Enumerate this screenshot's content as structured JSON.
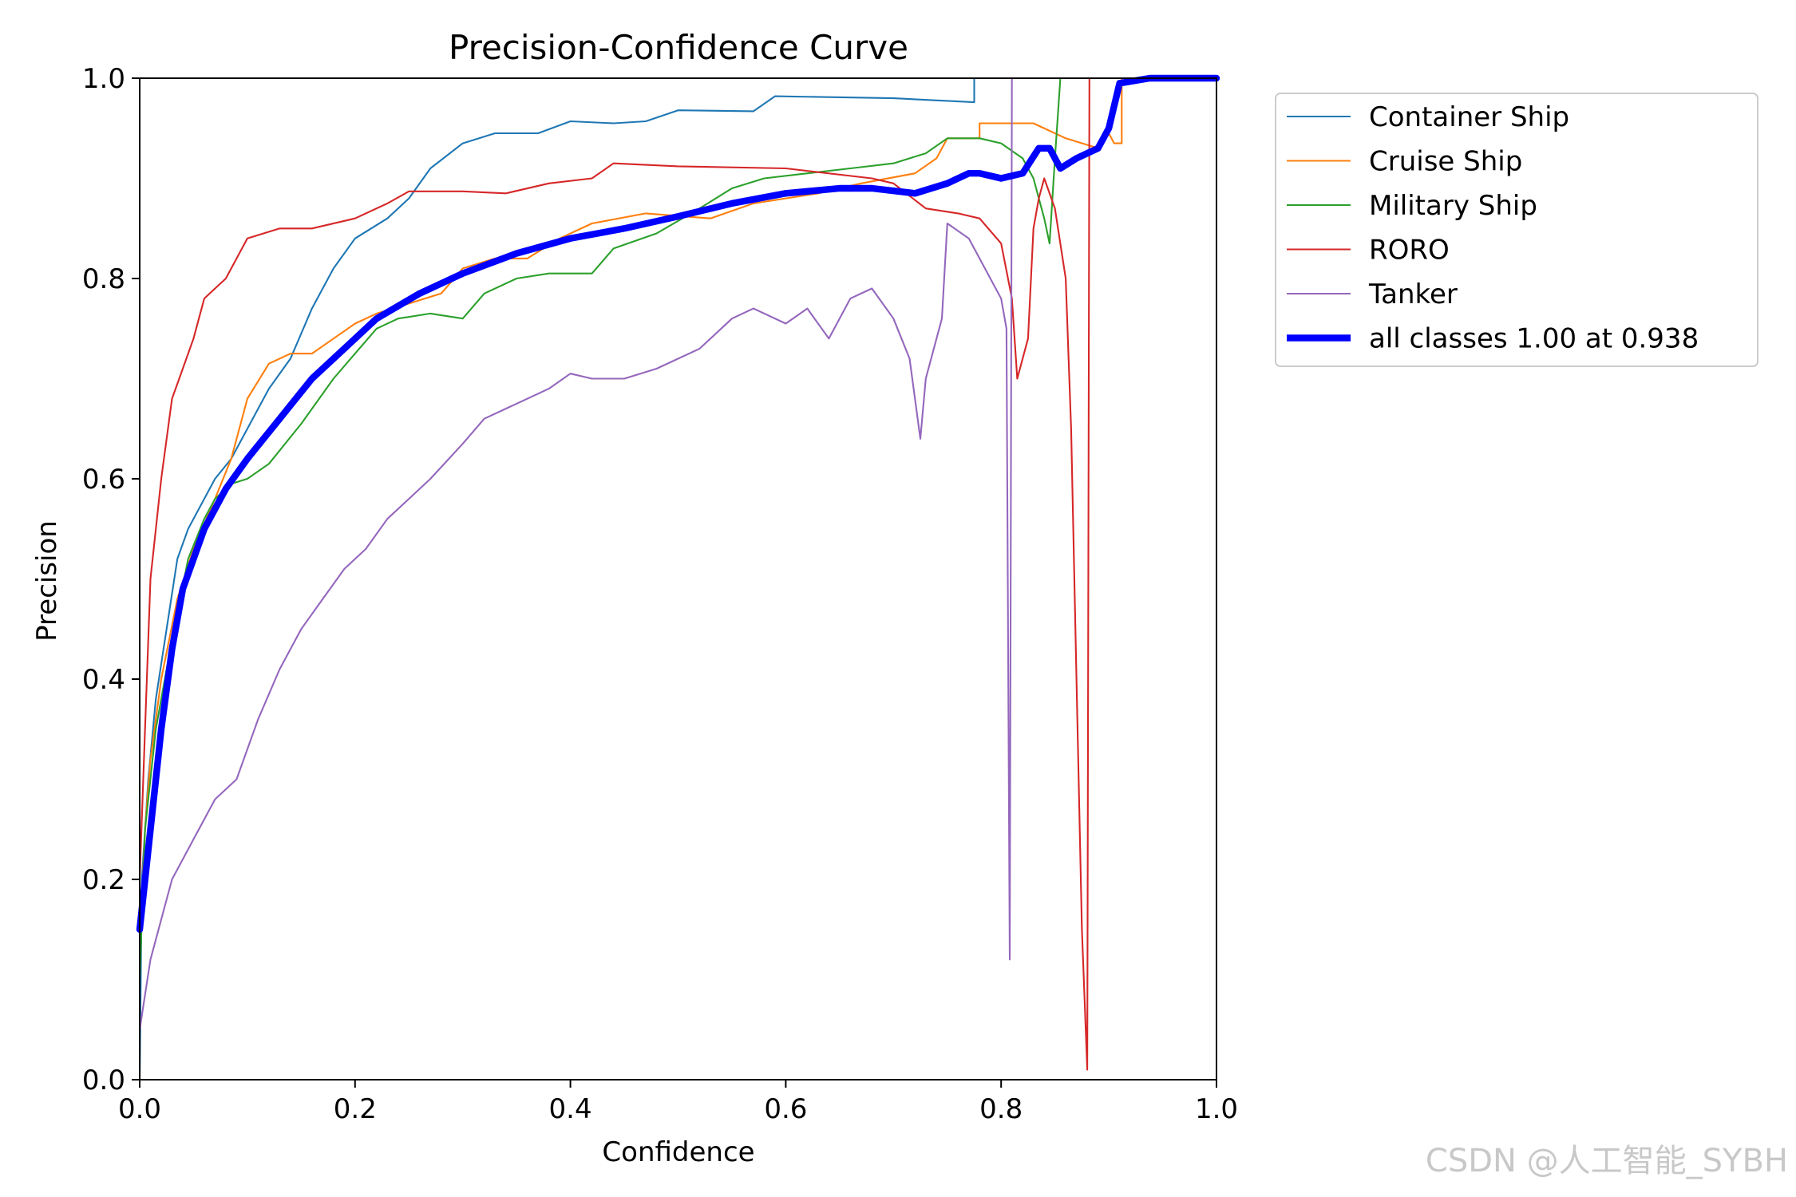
{
  "watermark": "CSDN @人工智能_SYBH",
  "chart_data": {
    "type": "line",
    "title": "Precision-Confidence Curve",
    "xlabel": "Confidence",
    "ylabel": "Precision",
    "xlim": [
      0,
      1
    ],
    "ylim": [
      0,
      1
    ],
    "xticks": [
      "0.0",
      "0.2",
      "0.4",
      "0.6",
      "0.8",
      "1.0"
    ],
    "yticks": [
      "0.0",
      "0.2",
      "0.4",
      "0.6",
      "0.8",
      "1.0"
    ],
    "legend_position": "outside-right-top",
    "series": [
      {
        "name": "Container Ship",
        "color": "#1f77b4",
        "width": 1.5,
        "points": [
          [
            0.0,
            0.0
          ],
          [
            0.002,
            0.2
          ],
          [
            0.008,
            0.3
          ],
          [
            0.015,
            0.38
          ],
          [
            0.025,
            0.45
          ],
          [
            0.035,
            0.52
          ],
          [
            0.045,
            0.55
          ],
          [
            0.06,
            0.58
          ],
          [
            0.07,
            0.6
          ],
          [
            0.085,
            0.62
          ],
          [
            0.1,
            0.65
          ],
          [
            0.12,
            0.69
          ],
          [
            0.14,
            0.72
          ],
          [
            0.16,
            0.77
          ],
          [
            0.18,
            0.81
          ],
          [
            0.2,
            0.84
          ],
          [
            0.23,
            0.86
          ],
          [
            0.25,
            0.88
          ],
          [
            0.27,
            0.91
          ],
          [
            0.3,
            0.935
          ],
          [
            0.33,
            0.945
          ],
          [
            0.37,
            0.945
          ],
          [
            0.4,
            0.957
          ],
          [
            0.44,
            0.955
          ],
          [
            0.47,
            0.957
          ],
          [
            0.5,
            0.968
          ],
          [
            0.57,
            0.967
          ],
          [
            0.59,
            0.982
          ],
          [
            0.7,
            0.98
          ],
          [
            0.775,
            0.976
          ],
          [
            0.775,
            1.0
          ],
          [
            1.0,
            1.0
          ]
        ]
      },
      {
        "name": "Cruise Ship",
        "color": "#ff7f0e",
        "width": 1.5,
        "points": [
          [
            0.0,
            0.13
          ],
          [
            0.005,
            0.25
          ],
          [
            0.01,
            0.32
          ],
          [
            0.02,
            0.4
          ],
          [
            0.035,
            0.48
          ],
          [
            0.05,
            0.53
          ],
          [
            0.07,
            0.58
          ],
          [
            0.085,
            0.62
          ],
          [
            0.1,
            0.68
          ],
          [
            0.12,
            0.715
          ],
          [
            0.14,
            0.725
          ],
          [
            0.16,
            0.725
          ],
          [
            0.18,
            0.74
          ],
          [
            0.2,
            0.755
          ],
          [
            0.22,
            0.765
          ],
          [
            0.25,
            0.775
          ],
          [
            0.28,
            0.785
          ],
          [
            0.3,
            0.81
          ],
          [
            0.33,
            0.82
          ],
          [
            0.36,
            0.82
          ],
          [
            0.39,
            0.84
          ],
          [
            0.42,
            0.855
          ],
          [
            0.47,
            0.865
          ],
          [
            0.53,
            0.86
          ],
          [
            0.57,
            0.875
          ],
          [
            0.63,
            0.885
          ],
          [
            0.67,
            0.895
          ],
          [
            0.72,
            0.905
          ],
          [
            0.74,
            0.92
          ],
          [
            0.75,
            0.94
          ],
          [
            0.78,
            0.94
          ],
          [
            0.78,
            0.955
          ],
          [
            0.83,
            0.955
          ],
          [
            0.86,
            0.94
          ],
          [
            0.89,
            0.93
          ],
          [
            0.9,
            0.945
          ],
          [
            0.905,
            0.935
          ],
          [
            0.912,
            0.935
          ],
          [
            0.912,
            1.0
          ],
          [
            1.0,
            1.0
          ]
        ]
      },
      {
        "name": "Military Ship",
        "color": "#2ca02c",
        "width": 1.5,
        "points": [
          [
            0.0,
            0.1
          ],
          [
            0.005,
            0.25
          ],
          [
            0.015,
            0.35
          ],
          [
            0.03,
            0.44
          ],
          [
            0.045,
            0.52
          ],
          [
            0.06,
            0.56
          ],
          [
            0.07,
            0.58
          ],
          [
            0.085,
            0.595
          ],
          [
            0.1,
            0.6
          ],
          [
            0.12,
            0.615
          ],
          [
            0.15,
            0.655
          ],
          [
            0.18,
            0.7
          ],
          [
            0.2,
            0.725
          ],
          [
            0.22,
            0.75
          ],
          [
            0.24,
            0.76
          ],
          [
            0.27,
            0.765
          ],
          [
            0.3,
            0.76
          ],
          [
            0.32,
            0.785
          ],
          [
            0.35,
            0.8
          ],
          [
            0.38,
            0.805
          ],
          [
            0.42,
            0.805
          ],
          [
            0.44,
            0.83
          ],
          [
            0.48,
            0.845
          ],
          [
            0.52,
            0.87
          ],
          [
            0.55,
            0.89
          ],
          [
            0.58,
            0.9
          ],
          [
            0.62,
            0.905
          ],
          [
            0.66,
            0.91
          ],
          [
            0.7,
            0.915
          ],
          [
            0.73,
            0.925
          ],
          [
            0.75,
            0.94
          ],
          [
            0.78,
            0.94
          ],
          [
            0.8,
            0.935
          ],
          [
            0.82,
            0.92
          ],
          [
            0.83,
            0.9
          ],
          [
            0.84,
            0.86
          ],
          [
            0.845,
            0.835
          ],
          [
            0.85,
            0.92
          ],
          [
            0.855,
            1.0
          ],
          [
            1.0,
            1.0
          ]
        ]
      },
      {
        "name": "RORO",
        "color": "#d62728",
        "width": 1.5,
        "points": [
          [
            0.0,
            0.2
          ],
          [
            0.005,
            0.35
          ],
          [
            0.01,
            0.5
          ],
          [
            0.02,
            0.6
          ],
          [
            0.03,
            0.68
          ],
          [
            0.04,
            0.71
          ],
          [
            0.05,
            0.74
          ],
          [
            0.06,
            0.78
          ],
          [
            0.07,
            0.79
          ],
          [
            0.08,
            0.8
          ],
          [
            0.09,
            0.82
          ],
          [
            0.1,
            0.84
          ],
          [
            0.13,
            0.85
          ],
          [
            0.16,
            0.85
          ],
          [
            0.2,
            0.86
          ],
          [
            0.23,
            0.875
          ],
          [
            0.25,
            0.887
          ],
          [
            0.3,
            0.887
          ],
          [
            0.34,
            0.885
          ],
          [
            0.38,
            0.895
          ],
          [
            0.42,
            0.9
          ],
          [
            0.44,
            0.915
          ],
          [
            0.5,
            0.912
          ],
          [
            0.6,
            0.91
          ],
          [
            0.68,
            0.9
          ],
          [
            0.7,
            0.895
          ],
          [
            0.73,
            0.87
          ],
          [
            0.76,
            0.865
          ],
          [
            0.78,
            0.86
          ],
          [
            0.8,
            0.835
          ],
          [
            0.81,
            0.78
          ],
          [
            0.815,
            0.7
          ],
          [
            0.825,
            0.74
          ],
          [
            0.83,
            0.85
          ],
          [
            0.835,
            0.88
          ],
          [
            0.84,
            0.9
          ],
          [
            0.85,
            0.87
          ],
          [
            0.86,
            0.8
          ],
          [
            0.865,
            0.65
          ],
          [
            0.87,
            0.4
          ],
          [
            0.875,
            0.15
          ],
          [
            0.88,
            0.01
          ],
          [
            0.882,
            1.0
          ],
          [
            1.0,
            1.0
          ]
        ]
      },
      {
        "name": "Tanker",
        "color": "#9467bd",
        "width": 1.5,
        "points": [
          [
            0.0,
            0.05
          ],
          [
            0.01,
            0.12
          ],
          [
            0.03,
            0.2
          ],
          [
            0.05,
            0.24
          ],
          [
            0.07,
            0.28
          ],
          [
            0.09,
            0.3
          ],
          [
            0.11,
            0.36
          ],
          [
            0.13,
            0.41
          ],
          [
            0.15,
            0.45
          ],
          [
            0.17,
            0.48
          ],
          [
            0.19,
            0.51
          ],
          [
            0.21,
            0.53
          ],
          [
            0.23,
            0.56
          ],
          [
            0.25,
            0.58
          ],
          [
            0.27,
            0.6
          ],
          [
            0.3,
            0.635
          ],
          [
            0.32,
            0.66
          ],
          [
            0.35,
            0.675
          ],
          [
            0.38,
            0.69
          ],
          [
            0.4,
            0.705
          ],
          [
            0.42,
            0.7
          ],
          [
            0.45,
            0.7
          ],
          [
            0.48,
            0.71
          ],
          [
            0.52,
            0.73
          ],
          [
            0.55,
            0.76
          ],
          [
            0.57,
            0.77
          ],
          [
            0.6,
            0.755
          ],
          [
            0.62,
            0.77
          ],
          [
            0.64,
            0.74
          ],
          [
            0.66,
            0.78
          ],
          [
            0.68,
            0.79
          ],
          [
            0.7,
            0.76
          ],
          [
            0.715,
            0.72
          ],
          [
            0.725,
            0.64
          ],
          [
            0.73,
            0.7
          ],
          [
            0.745,
            0.76
          ],
          [
            0.75,
            0.855
          ],
          [
            0.77,
            0.84
          ],
          [
            0.79,
            0.8
          ],
          [
            0.8,
            0.78
          ],
          [
            0.805,
            0.75
          ],
          [
            0.808,
            0.12
          ],
          [
            0.81,
            1.0
          ],
          [
            1.0,
            1.0
          ]
        ]
      },
      {
        "name": "all classes 1.00 at 0.938",
        "color": "#0000ff",
        "width": 6,
        "points": [
          [
            0.0,
            0.15
          ],
          [
            0.01,
            0.25
          ],
          [
            0.02,
            0.35
          ],
          [
            0.03,
            0.43
          ],
          [
            0.04,
            0.49
          ],
          [
            0.06,
            0.55
          ],
          [
            0.08,
            0.59
          ],
          [
            0.1,
            0.62
          ],
          [
            0.13,
            0.66
          ],
          [
            0.16,
            0.7
          ],
          [
            0.19,
            0.73
          ],
          [
            0.22,
            0.76
          ],
          [
            0.26,
            0.785
          ],
          [
            0.3,
            0.805
          ],
          [
            0.35,
            0.825
          ],
          [
            0.4,
            0.84
          ],
          [
            0.45,
            0.85
          ],
          [
            0.5,
            0.862
          ],
          [
            0.55,
            0.875
          ],
          [
            0.6,
            0.885
          ],
          [
            0.65,
            0.89
          ],
          [
            0.68,
            0.89
          ],
          [
            0.72,
            0.885
          ],
          [
            0.75,
            0.895
          ],
          [
            0.77,
            0.905
          ],
          [
            0.78,
            0.905
          ],
          [
            0.8,
            0.9
          ],
          [
            0.82,
            0.905
          ],
          [
            0.835,
            0.93
          ],
          [
            0.845,
            0.93
          ],
          [
            0.855,
            0.91
          ],
          [
            0.87,
            0.92
          ],
          [
            0.89,
            0.93
          ],
          [
            0.9,
            0.95
          ],
          [
            0.91,
            0.995
          ],
          [
            0.938,
            1.0
          ],
          [
            1.0,
            1.0
          ]
        ]
      }
    ]
  }
}
